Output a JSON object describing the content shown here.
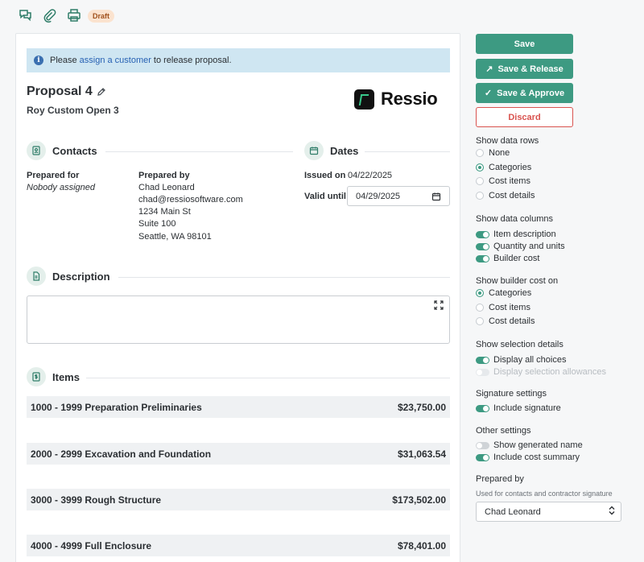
{
  "toolbar": {
    "icons": [
      "comments-icon",
      "paperclip-icon",
      "print-icon"
    ],
    "status_badge": "Draft"
  },
  "alert": {
    "prefix": "Please",
    "link": "assign a customer",
    "suffix": "to release proposal."
  },
  "proposal": {
    "title": "Proposal 4",
    "subtitle": "Roy Custom Open 3"
  },
  "logo": {
    "text": "Ressio"
  },
  "contacts": {
    "heading": "Contacts",
    "prepared_for_label": "Prepared for",
    "prepared_for_value": "Nobody assigned",
    "prepared_by_label": "Prepared by",
    "prepared_by_lines": [
      "Chad Leonard",
      "chad@ressiosoftware.com",
      "1234 Main St",
      "Suite 100",
      "Seattle, WA 98101"
    ]
  },
  "dates": {
    "heading": "Dates",
    "issued_label": "Issued on",
    "issued_value": "04/22/2025",
    "valid_label": "Valid until",
    "valid_value": "04/29/2025"
  },
  "description": {
    "heading": "Description"
  },
  "items": {
    "heading": "Items",
    "rows": [
      {
        "name": "1000 - 1999 Preparation Preliminaries",
        "amount": "$23,750.00"
      },
      {
        "name": "2000 - 2999 Excavation and Foundation",
        "amount": "$31,063.54"
      },
      {
        "name": "3000 - 3999 Rough Structure",
        "amount": "$173,502.00"
      },
      {
        "name": "4000 - 4999 Full Enclosure",
        "amount": "$78,401.00"
      }
    ]
  },
  "actions": {
    "save": "Save",
    "save_release": "Save & Release",
    "save_approve": "Save & Approve",
    "discard": "Discard"
  },
  "settings": {
    "data_rows": {
      "heading": "Show data rows",
      "options": [
        "None",
        "Categories",
        "Cost items",
        "Cost details"
      ],
      "selected": "Categories"
    },
    "data_columns": {
      "heading": "Show data columns",
      "options": [
        "Item description",
        "Quantity and units",
        "Builder cost"
      ]
    },
    "builder_cost": {
      "heading": "Show builder cost on",
      "options": [
        "Categories",
        "Cost items",
        "Cost details"
      ],
      "selected": "Categories"
    },
    "selection_details": {
      "heading": "Show selection details",
      "options": [
        "Display all choices",
        "Display selection allowances"
      ]
    },
    "signature": {
      "heading": "Signature settings",
      "options": [
        "Include signature"
      ]
    },
    "other": {
      "heading": "Other settings",
      "options": [
        "Show generated name",
        "Include cost summary"
      ]
    },
    "prepared_by": {
      "heading": "Prepared by",
      "note": "Used for contacts and contractor signature",
      "value": "Chad Leonard"
    }
  },
  "colors": {
    "accent": "#3d9a82",
    "danger": "#d9534f",
    "alert_bg": "#cfe6f2",
    "badge_bg": "#fbe3cf"
  }
}
